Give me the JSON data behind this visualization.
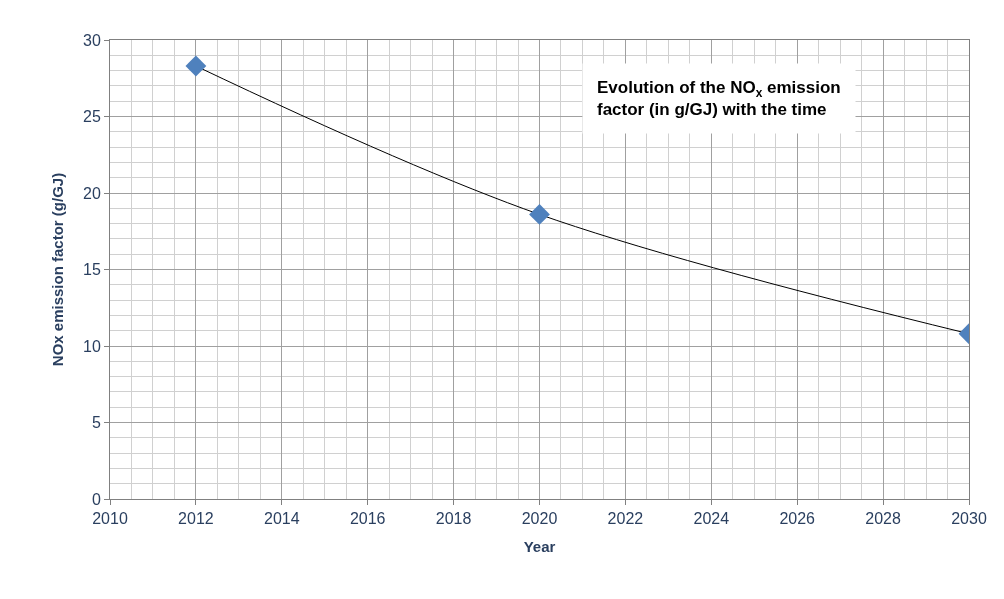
{
  "chart_data": {
    "type": "line",
    "title": "Evolution of the NO$_{x}$ emission factor (in g/GJ) with the time",
    "xlabel": "Year",
    "ylabel": "NOx emission factor (g/GJ)",
    "x": [
      2012,
      2020,
      2030
    ],
    "series": [
      {
        "color": "#4f81bd",
        "values": [
          28.3,
          18.6,
          10.8
        ]
      }
    ],
    "xlim": [
      2010,
      2030
    ],
    "xticks": [
      2010,
      2012,
      2014,
      2016,
      2018,
      2020,
      2022,
      2024,
      2026,
      2028,
      2030
    ],
    "ylim": [
      0,
      30
    ],
    "yticks": [
      0,
      5,
      10,
      15,
      20,
      25,
      30
    ],
    "grid": true,
    "marker": "diamond",
    "line_style": "solid",
    "legend": false
  }
}
